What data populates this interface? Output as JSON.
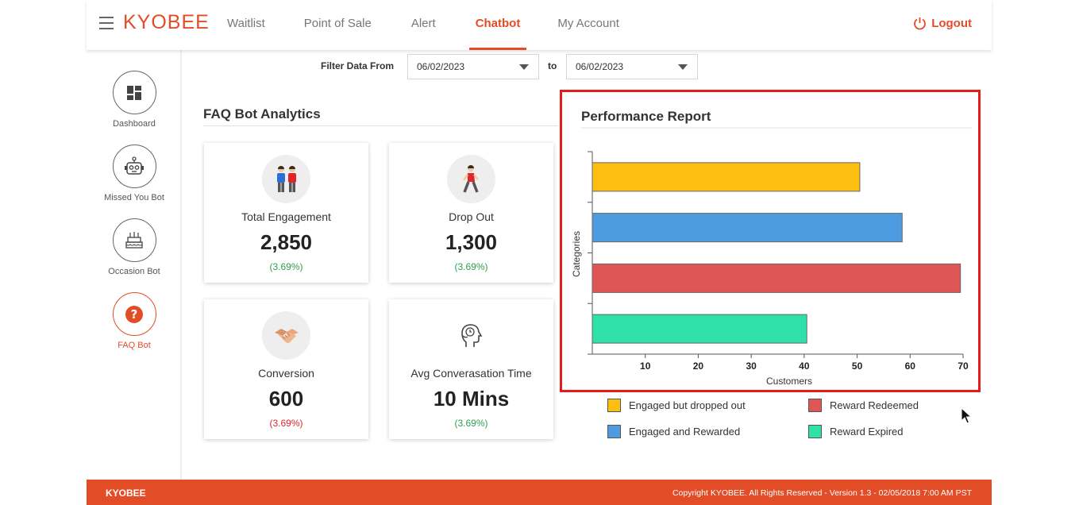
{
  "header": {
    "logo": "KYOBEE",
    "nav": [
      {
        "label": "Waitlist"
      },
      {
        "label": "Point of Sale"
      },
      {
        "label": "Alert"
      },
      {
        "label": "Chatbot"
      },
      {
        "label": "My Account"
      }
    ],
    "active_nav": "Chatbot",
    "logout_label": "Logout"
  },
  "sidebar": {
    "items": [
      {
        "label": "Dashboard",
        "icon": "dashboard-grid-icon"
      },
      {
        "label": "Missed You Bot",
        "icon": "robot-icon"
      },
      {
        "label": "Occasion Bot",
        "icon": "cake-icon"
      },
      {
        "label": "FAQ Bot",
        "icon": "question-icon"
      }
    ],
    "active": "FAQ Bot"
  },
  "filter": {
    "label": "Filter Data From",
    "from": "06/02/2023",
    "to_label": "to",
    "to": "06/02/2023"
  },
  "faq": {
    "title": "FAQ Bot Analytics",
    "cards": [
      {
        "title": "Total Engagement",
        "value": "2,850",
        "pct": "(3.69%)",
        "pct_color": "green",
        "icon": "people-icon"
      },
      {
        "title": "Drop Out",
        "value": "1,300",
        "pct": "(3.69%)",
        "pct_color": "green",
        "icon": "walking-person-icon"
      },
      {
        "title": "Conversion",
        "value": "600",
        "pct": "(3.69%)",
        "pct_color": "red",
        "icon": "handshake-icon"
      },
      {
        "title": "Avg Converasation Time",
        "value": "10 Mins",
        "pct": "(3.69%)",
        "pct_color": "green",
        "icon": "thinking-head-icon"
      }
    ]
  },
  "performance": {
    "title": "Performance Report"
  },
  "chart_data": {
    "type": "bar",
    "orientation": "horizontal",
    "categories": [
      "Engaged but dropped out",
      "Engaged and Rewarded",
      "Reward Redeemed",
      "Reward Expired"
    ],
    "values": [
      50.5,
      58.5,
      69.5,
      40.5
    ],
    "colors": [
      "#fcbf11",
      "#4d9ce0",
      "#e05555",
      "#2fe0a8"
    ],
    "xlabel": "Customers",
    "ylabel": "Categories",
    "xlim": [
      0,
      70
    ],
    "xticks": [
      10,
      20,
      30,
      40,
      50,
      60,
      70
    ]
  },
  "legend": [
    {
      "label": "Engaged but dropped out",
      "color": "#fcbf11"
    },
    {
      "label": "Reward Redeemed",
      "color": "#e05555"
    },
    {
      "label": "Engaged and Rewarded",
      "color": "#4d9ce0"
    },
    {
      "label": "Reward Expired",
      "color": "#2fe0a8"
    }
  ],
  "footer": {
    "brand": "KYOBEE",
    "copyright": "Copyright KYOBEE. All Rights Reserved - Version 1.3 - 02/05/2018 7:00 AM PST"
  }
}
